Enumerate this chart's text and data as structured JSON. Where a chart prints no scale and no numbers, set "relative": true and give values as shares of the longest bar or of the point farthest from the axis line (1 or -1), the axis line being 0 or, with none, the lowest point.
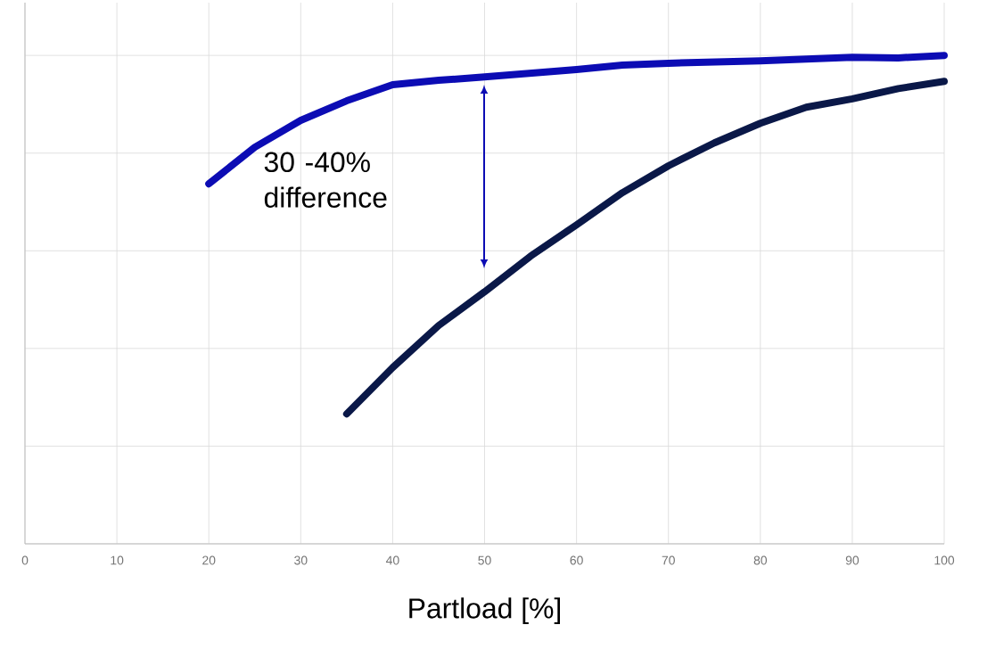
{
  "chart_data": {
    "type": "line",
    "xlabel": "Partload [%]",
    "relative": true,
    "grid": true,
    "xlim": [
      0,
      100
    ],
    "xticks": [
      0,
      10,
      20,
      30,
      40,
      50,
      60,
      70,
      80,
      90,
      100
    ],
    "series": [
      {
        "color": "#0c0cb4",
        "x": [
          20,
          25,
          30,
          35,
          40,
          45,
          50,
          60,
          65,
          70,
          80,
          90,
          95,
          100
        ],
        "values": [
          0.737,
          0.812,
          0.867,
          0.907,
          0.94,
          0.949,
          0.956,
          0.971,
          0.98,
          0.984,
          0.989,
          0.996,
          0.995,
          1
        ]
      },
      {
        "color": "#0a1848",
        "x": [
          35,
          40,
          45,
          50,
          55,
          60,
          65,
          70,
          75,
          80,
          85,
          90,
          95,
          100
        ],
        "values": [
          0.266,
          0.361,
          0.447,
          0.516,
          0.589,
          0.653,
          0.719,
          0.774,
          0.821,
          0.861,
          0.894,
          0.911,
          0.932,
          0.947
        ]
      }
    ],
    "annotations": [
      "30 -40% difference"
    ]
  }
}
